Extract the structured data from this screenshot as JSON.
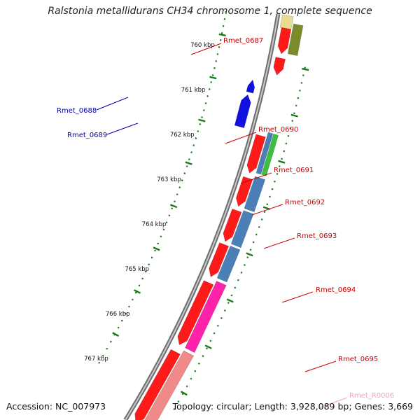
{
  "title": "Ralstonia metallidurans CH34 chromosome 1, complete sequence",
  "accession": "Accession: NC_007973",
  "summary": "Topology: circular; Length: 3,928,089 bp; Genes: 3,669",
  "colors": {
    "backbone": "#8a8a8a",
    "ticks": "#1a7a1a",
    "gene_forward": "#ff1a1a",
    "gene_reverse": "#1010e0",
    "forward_label": "#cc0000",
    "reverse_label": "#0000aa",
    "rna_label": "#f2a0c0"
  },
  "ticks": [
    "760 kbp",
    "761 kbp",
    "762 kbp",
    "763 kbp",
    "764 kbp",
    "765 kbp",
    "766 kbp",
    "767 kbp"
  ],
  "genes": [
    {
      "name": "Rmet_0687",
      "strand": "forward"
    },
    {
      "name": "Rmet_0688",
      "strand": "reverse"
    },
    {
      "name": "Rmet_0689",
      "strand": "reverse"
    },
    {
      "name": "Rmet_0690",
      "strand": "forward"
    },
    {
      "name": "Rmet_0691",
      "strand": "forward"
    },
    {
      "name": "Rmet_0692",
      "strand": "forward"
    },
    {
      "name": "Rmet_0693",
      "strand": "forward"
    },
    {
      "name": "Rmet_0694",
      "strand": "forward"
    },
    {
      "name": "Rmet_0695",
      "strand": "forward"
    },
    {
      "name": "Rmet_R0006",
      "strand": "forward"
    }
  ]
}
